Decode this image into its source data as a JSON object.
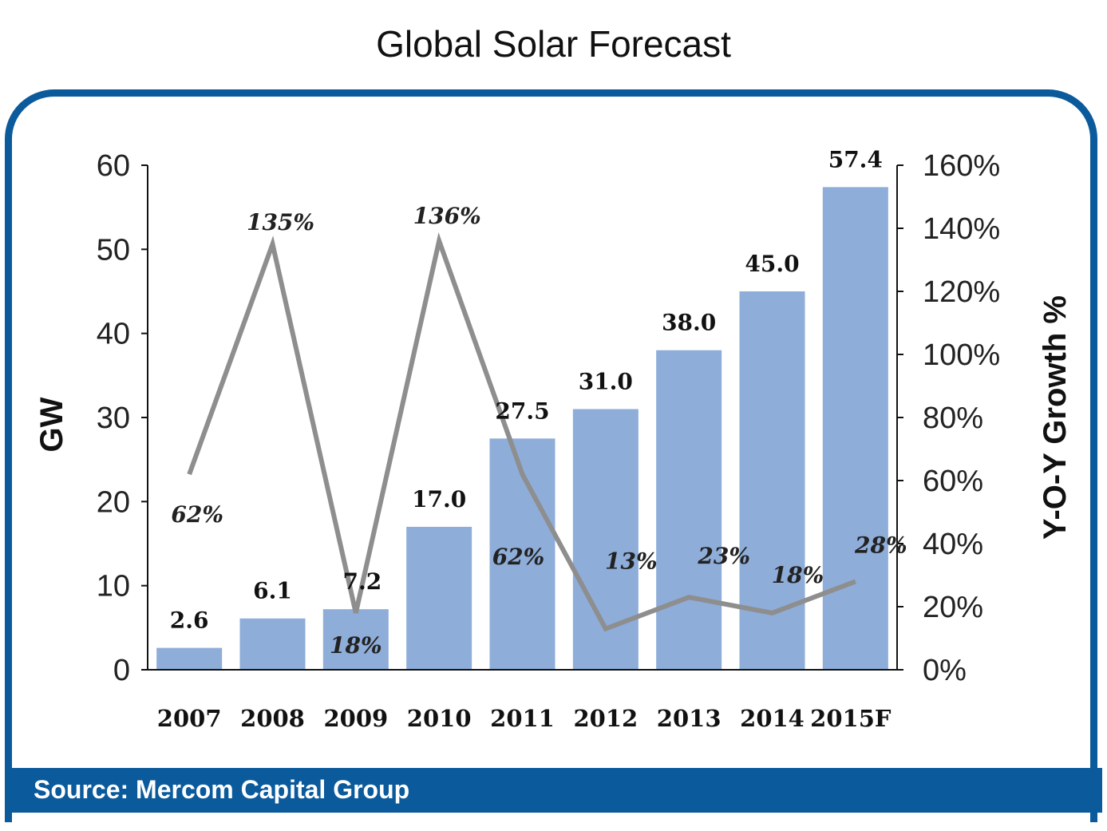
{
  "title": "Global Solar Forecast",
  "source": "Source: Mercom Capital Group",
  "colors": {
    "frame": "#0a5a9c",
    "bar": "#8eadd9",
    "line": "#8e8e8e"
  },
  "chart_data": {
    "type": "bar",
    "title": "Global Solar Forecast",
    "categories": [
      "2007",
      "2008",
      "2009",
      "2010",
      "2011",
      "2012",
      "2013",
      "2014",
      "2015F"
    ],
    "series": [
      {
        "name": "GW",
        "type": "bar",
        "axis": "left",
        "values": [
          2.6,
          6.1,
          7.2,
          17.0,
          27.5,
          31.0,
          38.0,
          45.0,
          57.4
        ],
        "labels": [
          "2.6",
          "6.1",
          "7.2",
          "17.0",
          "27.5",
          "31.0",
          "38.0",
          "45.0",
          "57.4"
        ]
      },
      {
        "name": "Y-O-Y Growth %",
        "type": "line",
        "axis": "right",
        "values": [
          62,
          135,
          18,
          136,
          62,
          13,
          23,
          18,
          28
        ],
        "labels": [
          "62%",
          "135%",
          "18%",
          "136%",
          "62%",
          "13%",
          "23%",
          "18%",
          "28%"
        ]
      }
    ],
    "ylabel": "GW",
    "y2label": "Y-O-Y Growth %",
    "ylim": [
      0,
      60
    ],
    "y2lim": [
      0,
      160
    ],
    "yticks": [
      "0",
      "10",
      "20",
      "30",
      "40",
      "50",
      "60"
    ],
    "y2ticks": [
      "0%",
      "20%",
      "40%",
      "60%",
      "80%",
      "100%",
      "120%",
      "140%",
      "160%"
    ],
    "grid": false
  }
}
